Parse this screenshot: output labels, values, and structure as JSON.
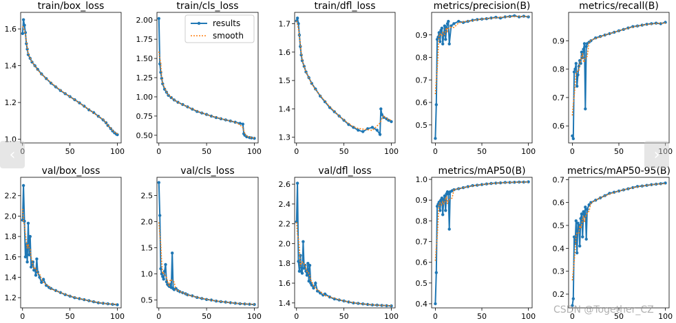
{
  "nav": {
    "prev_icon": "‹",
    "next_icon": "›"
  },
  "watermark": "CSDN @Together_CZ",
  "colors": {
    "results": "#1f77b4",
    "smooth": "#ff7f0e"
  },
  "legend": {
    "results": "results",
    "smooth": "smooth"
  },
  "chart_data": [
    {
      "type": "line",
      "title": "train/box_loss",
      "xlim": [
        -2,
        104
      ],
      "ylim": [
        0.98,
        1.69
      ],
      "xticks": [
        0,
        50,
        100
      ],
      "yticks": [
        1.0,
        1.2,
        1.4,
        1.6
      ],
      "decimals": 1,
      "series": [
        {
          "name": "results",
          "x": [
            0,
            1,
            2,
            3,
            4,
            5,
            6,
            8,
            10,
            13,
            16,
            20,
            25,
            30,
            35,
            40,
            45,
            50,
            55,
            60,
            65,
            70,
            75,
            80,
            85,
            88,
            90,
            93,
            95,
            97,
            99,
            100
          ],
          "y": [
            1.575,
            1.65,
            1.62,
            1.58,
            1.52,
            1.49,
            1.46,
            1.44,
            1.42,
            1.4,
            1.38,
            1.355,
            1.33,
            1.305,
            1.285,
            1.265,
            1.248,
            1.232,
            1.215,
            1.198,
            1.18,
            1.16,
            1.145,
            1.125,
            1.105,
            1.09,
            1.075,
            1.058,
            1.045,
            1.035,
            1.028,
            1.025
          ]
        }
      ],
      "smooth": true
    },
    {
      "type": "line",
      "title": "train/cls_loss",
      "xlim": [
        -2,
        104
      ],
      "ylim": [
        0.4,
        2.1
      ],
      "xticks": [
        0,
        50,
        100
      ],
      "yticks": [
        0.5,
        0.75,
        1.0,
        1.25,
        1.5,
        1.75,
        2.0
      ],
      "decimals": 2,
      "legend": "upper right",
      "series": [
        {
          "name": "results",
          "x": [
            0,
            1,
            2,
            3,
            4,
            6,
            8,
            10,
            13,
            16,
            20,
            25,
            30,
            35,
            40,
            45,
            50,
            55,
            60,
            65,
            70,
            75,
            80,
            85,
            88,
            89,
            90,
            92,
            95,
            97,
            100
          ],
          "y": [
            2.02,
            1.43,
            1.32,
            1.24,
            1.17,
            1.1,
            1.06,
            1.02,
            0.99,
            0.96,
            0.93,
            0.9,
            0.87,
            0.84,
            0.81,
            0.79,
            0.77,
            0.75,
            0.73,
            0.715,
            0.7,
            0.685,
            0.67,
            0.655,
            0.645,
            0.52,
            0.5,
            0.48,
            0.47,
            0.465,
            0.46
          ]
        }
      ],
      "smooth": true
    },
    {
      "type": "line",
      "title": "train/dfl_loss",
      "xlim": [
        -2,
        104
      ],
      "ylim": [
        1.28,
        1.74
      ],
      "xticks": [
        0,
        50,
        100
      ],
      "yticks": [
        1.3,
        1.4,
        1.5,
        1.6,
        1.7
      ],
      "decimals": 1,
      "series": [
        {
          "name": "results",
          "x": [
            0,
            1,
            2,
            3,
            4,
            5,
            6,
            8,
            10,
            13,
            16,
            20,
            25,
            30,
            35,
            40,
            45,
            50,
            55,
            60,
            65,
            70,
            75,
            80,
            85,
            88,
            89,
            90,
            92,
            95,
            97,
            100
          ],
          "y": [
            1.71,
            1.72,
            1.7,
            1.66,
            1.62,
            1.59,
            1.57,
            1.55,
            1.53,
            1.51,
            1.49,
            1.47,
            1.445,
            1.425,
            1.405,
            1.39,
            1.375,
            1.36,
            1.345,
            1.335,
            1.325,
            1.32,
            1.33,
            1.335,
            1.325,
            1.31,
            1.4,
            1.38,
            1.37,
            1.365,
            1.36,
            1.355
          ]
        }
      ],
      "smooth": true
    },
    {
      "type": "line",
      "title": "metrics/precision(B)",
      "xlim": [
        -4,
        104
      ],
      "ylim": [
        0.42,
        1.0
      ],
      "xticks": [
        0,
        50,
        100
      ],
      "yticks": [
        0.5,
        0.6,
        0.7,
        0.8,
        0.9
      ],
      "decimals": 1,
      "series": [
        {
          "name": "results",
          "x": [
            0,
            1,
            2,
            3,
            4,
            5,
            6,
            7,
            8,
            9,
            10,
            11,
            12,
            13,
            14,
            15,
            17,
            20,
            25,
            30,
            35,
            40,
            45,
            50,
            55,
            60,
            65,
            70,
            75,
            80,
            85,
            90,
            95,
            100
          ],
          "y": [
            0.44,
            0.59,
            0.88,
            0.89,
            0.91,
            0.87,
            0.92,
            0.93,
            0.86,
            0.9,
            0.94,
            0.88,
            0.93,
            0.95,
            0.96,
            0.86,
            0.94,
            0.95,
            0.96,
            0.955,
            0.96,
            0.965,
            0.968,
            0.97,
            0.972,
            0.975,
            0.978,
            0.975,
            0.98,
            0.982,
            0.985,
            0.98,
            0.983,
            0.98
          ]
        }
      ],
      "smooth": true
    },
    {
      "type": "line",
      "title": "metrics/recall(B)",
      "xlim": [
        -4,
        104
      ],
      "ylim": [
        0.54,
        1.0
      ],
      "xticks": [
        0,
        50,
        100
      ],
      "yticks": [
        0.6,
        0.7,
        0.8,
        0.9
      ],
      "decimals": 1,
      "series": [
        {
          "name": "results",
          "x": [
            0,
            1,
            2,
            3,
            4,
            5,
            6,
            7,
            8,
            9,
            10,
            11,
            12,
            13,
            14,
            15,
            16,
            18,
            20,
            25,
            30,
            35,
            40,
            45,
            50,
            55,
            60,
            65,
            70,
            75,
            80,
            85,
            90,
            95,
            100
          ],
          "y": [
            0.565,
            0.555,
            0.79,
            0.8,
            0.82,
            0.74,
            0.78,
            0.81,
            0.83,
            0.82,
            0.86,
            0.84,
            0.87,
            0.89,
            0.66,
            0.88,
            0.89,
            0.895,
            0.9,
            0.91,
            0.915,
            0.92,
            0.925,
            0.93,
            0.935,
            0.94,
            0.945,
            0.95,
            0.952,
            0.955,
            0.958,
            0.96,
            0.962,
            0.96,
            0.965
          ]
        }
      ],
      "smooth": true
    },
    {
      "type": "line",
      "title": "val/box_loss",
      "xlim": [
        -2,
        104
      ],
      "ylim": [
        1.1,
        2.38
      ],
      "xticks": [
        0,
        50,
        100
      ],
      "yticks": [
        1.2,
        1.4,
        1.6,
        1.8,
        2.0,
        2.2
      ],
      "decimals": 1,
      "series": [
        {
          "name": "results",
          "x": [
            0,
            1,
            2,
            3,
            4,
            5,
            6,
            7,
            8,
            9,
            10,
            11,
            12,
            13,
            14,
            15,
            16,
            18,
            20,
            22,
            25,
            28,
            30,
            35,
            40,
            45,
            50,
            55,
            60,
            65,
            70,
            75,
            80,
            85,
            90,
            95,
            100
          ],
          "y": [
            1.96,
            2.3,
            1.95,
            1.6,
            1.72,
            1.55,
            1.93,
            1.62,
            1.8,
            1.5,
            1.52,
            1.55,
            1.47,
            1.48,
            1.42,
            1.58,
            1.45,
            1.4,
            1.35,
            1.38,
            1.32,
            1.3,
            1.29,
            1.27,
            1.25,
            1.23,
            1.215,
            1.2,
            1.19,
            1.18,
            1.17,
            1.16,
            1.15,
            1.145,
            1.14,
            1.135,
            1.13
          ]
        }
      ],
      "smooth": true
    },
    {
      "type": "line",
      "title": "val/cls_loss",
      "xlim": [
        -2,
        104
      ],
      "ylim": [
        0.35,
        2.85
      ],
      "xticks": [
        0,
        50,
        100
      ],
      "yticks": [
        0.5,
        1.0,
        1.5,
        2.0,
        2.5
      ],
      "decimals": 1,
      "series": [
        {
          "name": "results",
          "x": [
            0,
            1,
            2,
            3,
            4,
            5,
            6,
            7,
            8,
            9,
            10,
            11,
            12,
            13,
            14,
            15,
            16,
            18,
            20,
            22,
            25,
            28,
            30,
            35,
            40,
            45,
            50,
            55,
            60,
            65,
            70,
            75,
            80,
            85,
            90,
            95,
            100
          ],
          "y": [
            2.75,
            2.12,
            1.1,
            1.0,
            0.95,
            0.9,
            1.05,
            1.18,
            0.85,
            0.8,
            0.78,
            0.76,
            0.8,
            0.74,
            1.4,
            0.72,
            0.7,
            0.72,
            0.68,
            0.66,
            0.64,
            0.62,
            0.6,
            0.58,
            0.55,
            0.53,
            0.51,
            0.5,
            0.48,
            0.47,
            0.46,
            0.45,
            0.44,
            0.43,
            0.425,
            0.42,
            0.415
          ]
        }
      ],
      "smooth": true
    },
    {
      "type": "line",
      "title": "val/dfl_loss",
      "xlim": [
        -2,
        104
      ],
      "ylim": [
        1.35,
        2.67
      ],
      "xticks": [
        0,
        50,
        100
      ],
      "yticks": [
        1.4,
        1.6,
        1.8,
        2.0,
        2.2,
        2.4,
        2.6
      ],
      "decimals": 1,
      "series": [
        {
          "name": "results",
          "x": [
            0,
            1,
            2,
            3,
            4,
            5,
            6,
            7,
            8,
            9,
            10,
            11,
            12,
            13,
            14,
            15,
            16,
            18,
            20,
            22,
            25,
            28,
            30,
            35,
            40,
            45,
            50,
            55,
            60,
            65,
            70,
            75,
            80,
            85,
            90,
            95,
            100
          ],
          "y": [
            2.22,
            2.61,
            1.82,
            1.72,
            1.88,
            1.72,
            1.7,
            2.02,
            1.75,
            1.78,
            1.72,
            1.68,
            1.8,
            1.62,
            1.78,
            1.6,
            1.58,
            1.55,
            1.6,
            1.52,
            1.5,
            1.48,
            1.49,
            1.46,
            1.44,
            1.43,
            1.42,
            1.41,
            1.4,
            1.395,
            1.39,
            1.385,
            1.38,
            1.378,
            1.375,
            1.372,
            1.37
          ]
        }
      ],
      "smooth": true
    },
    {
      "type": "line",
      "title": "metrics/mAP50(B)",
      "xlim": [
        -4,
        104
      ],
      "ylim": [
        0.38,
        1.01
      ],
      "xticks": [
        0,
        50,
        100
      ],
      "yticks": [
        0.4,
        0.5,
        0.6,
        0.7,
        0.8,
        0.9,
        1.0
      ],
      "decimals": 1,
      "series": [
        {
          "name": "results",
          "x": [
            0,
            1,
            2,
            3,
            4,
            5,
            6,
            7,
            8,
            9,
            10,
            11,
            12,
            13,
            14,
            15,
            16,
            18,
            20,
            25,
            30,
            35,
            40,
            45,
            50,
            55,
            60,
            65,
            70,
            75,
            80,
            85,
            90,
            95,
            100
          ],
          "y": [
            0.4,
            0.55,
            0.87,
            0.88,
            0.89,
            0.85,
            0.9,
            0.91,
            0.83,
            0.9,
            0.92,
            0.85,
            0.93,
            0.94,
            0.93,
            0.76,
            0.94,
            0.945,
            0.95,
            0.955,
            0.96,
            0.965,
            0.97,
            0.972,
            0.975,
            0.978,
            0.98,
            0.982,
            0.983,
            0.985,
            0.985,
            0.986,
            0.987,
            0.987,
            0.988
          ]
        }
      ],
      "smooth": true
    },
    {
      "type": "line",
      "title": "metrics/mAP50-95(B)",
      "xlim": [
        -4,
        104
      ],
      "ylim": [
        0.14,
        0.71
      ],
      "xticks": [
        0,
        50,
        100
      ],
      "yticks": [
        0.2,
        0.3,
        0.4,
        0.5,
        0.6,
        0.7
      ],
      "decimals": 1,
      "series": [
        {
          "name": "results",
          "x": [
            0,
            1,
            2,
            3,
            4,
            5,
            6,
            7,
            8,
            9,
            10,
            11,
            12,
            13,
            14,
            15,
            16,
            18,
            20,
            25,
            30,
            35,
            40,
            45,
            50,
            55,
            60,
            65,
            70,
            75,
            80,
            85,
            90,
            95,
            100
          ],
          "y": [
            0.15,
            0.18,
            0.45,
            0.42,
            0.52,
            0.38,
            0.51,
            0.5,
            0.41,
            0.53,
            0.55,
            0.45,
            0.56,
            0.54,
            0.58,
            0.44,
            0.57,
            0.59,
            0.6,
            0.61,
            0.62,
            0.63,
            0.64,
            0.645,
            0.65,
            0.655,
            0.66,
            0.665,
            0.67,
            0.672,
            0.675,
            0.678,
            0.68,
            0.682,
            0.685
          ]
        }
      ],
      "smooth": true
    }
  ]
}
